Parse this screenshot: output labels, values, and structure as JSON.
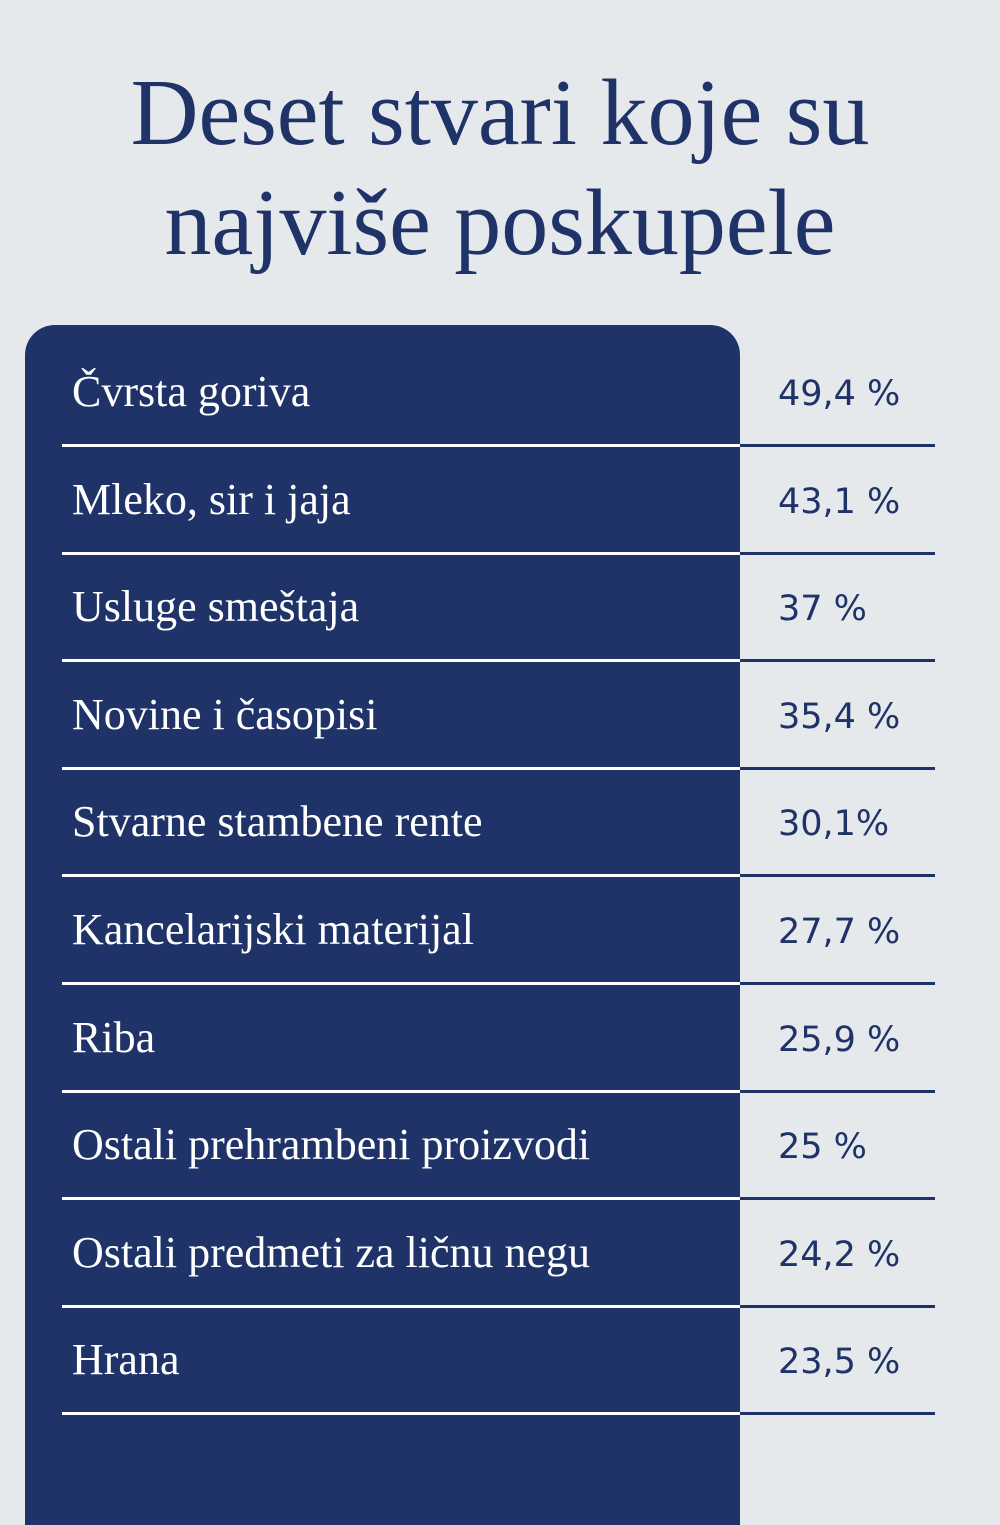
{
  "header": {
    "title_lines": [
      "Deset stvari koje su",
      "najviše poskupele"
    ]
  },
  "table": {
    "rows": [
      [
        "Čvrsta goriva",
        "49,4 %"
      ],
      [
        "Mleko, sir i jaja",
        "43,1 %"
      ],
      [
        "Usluge smeštaja",
        "37 %"
      ],
      [
        "Novine i časopisi",
        "35,4 %"
      ],
      [
        "Stvarne stambene rente",
        "30,1%"
      ],
      [
        "Kancelarijski materijal",
        "27,7 %"
      ],
      [
        "Riba",
        "25,9 %"
      ],
      [
        "Ostali prehrambeni proizvodi",
        "25 %"
      ],
      [
        "Ostali predmeti za ličnu negu",
        "24,2 %"
      ],
      [
        "Hrana",
        "23,5 %"
      ]
    ]
  }
}
